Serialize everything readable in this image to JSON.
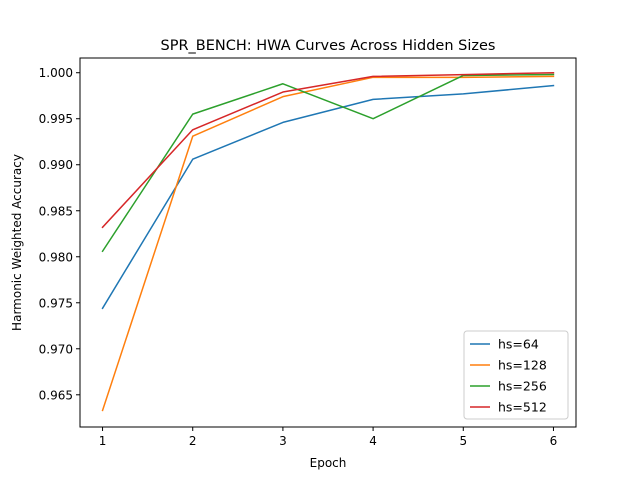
{
  "chart_data": {
    "type": "line",
    "title": "SPR_BENCH: HWA Curves Across Hidden Sizes",
    "xlabel": "Epoch",
    "ylabel": "Harmonic Weighted Accuracy",
    "x": [
      1,
      2,
      3,
      4,
      5,
      6
    ],
    "xlim": [
      0.75,
      6.25
    ],
    "ylim": [
      0.9615,
      1.0016
    ],
    "xticks": [
      1,
      2,
      3,
      4,
      5,
      6
    ],
    "yticks": [
      0.965,
      0.97,
      0.975,
      0.98,
      0.985,
      0.99,
      0.995,
      1.0
    ],
    "ytick_labels": [
      "0.965",
      "0.970",
      "0.975",
      "0.980",
      "0.985",
      "0.990",
      "0.995",
      "1.000"
    ],
    "grid": false,
    "legend_position": "lower-right",
    "series": [
      {
        "name": "hs=64",
        "color": "#1f77b4",
        "values": [
          0.9744,
          0.9906,
          0.9946,
          0.9971,
          0.9977,
          0.9986
        ]
      },
      {
        "name": "hs=128",
        "color": "#ff7f0e",
        "values": [
          0.9633,
          0.9931,
          0.9974,
          0.9995,
          0.9995,
          0.9996
        ]
      },
      {
        "name": "hs=256",
        "color": "#2ca02c",
        "values": [
          0.9806,
          0.9955,
          0.9988,
          0.995,
          0.9997,
          0.9998
        ]
      },
      {
        "name": "hs=512",
        "color": "#d62728",
        "values": [
          0.9832,
          0.9938,
          0.9979,
          0.9996,
          0.9998,
          1.0
        ]
      }
    ]
  }
}
